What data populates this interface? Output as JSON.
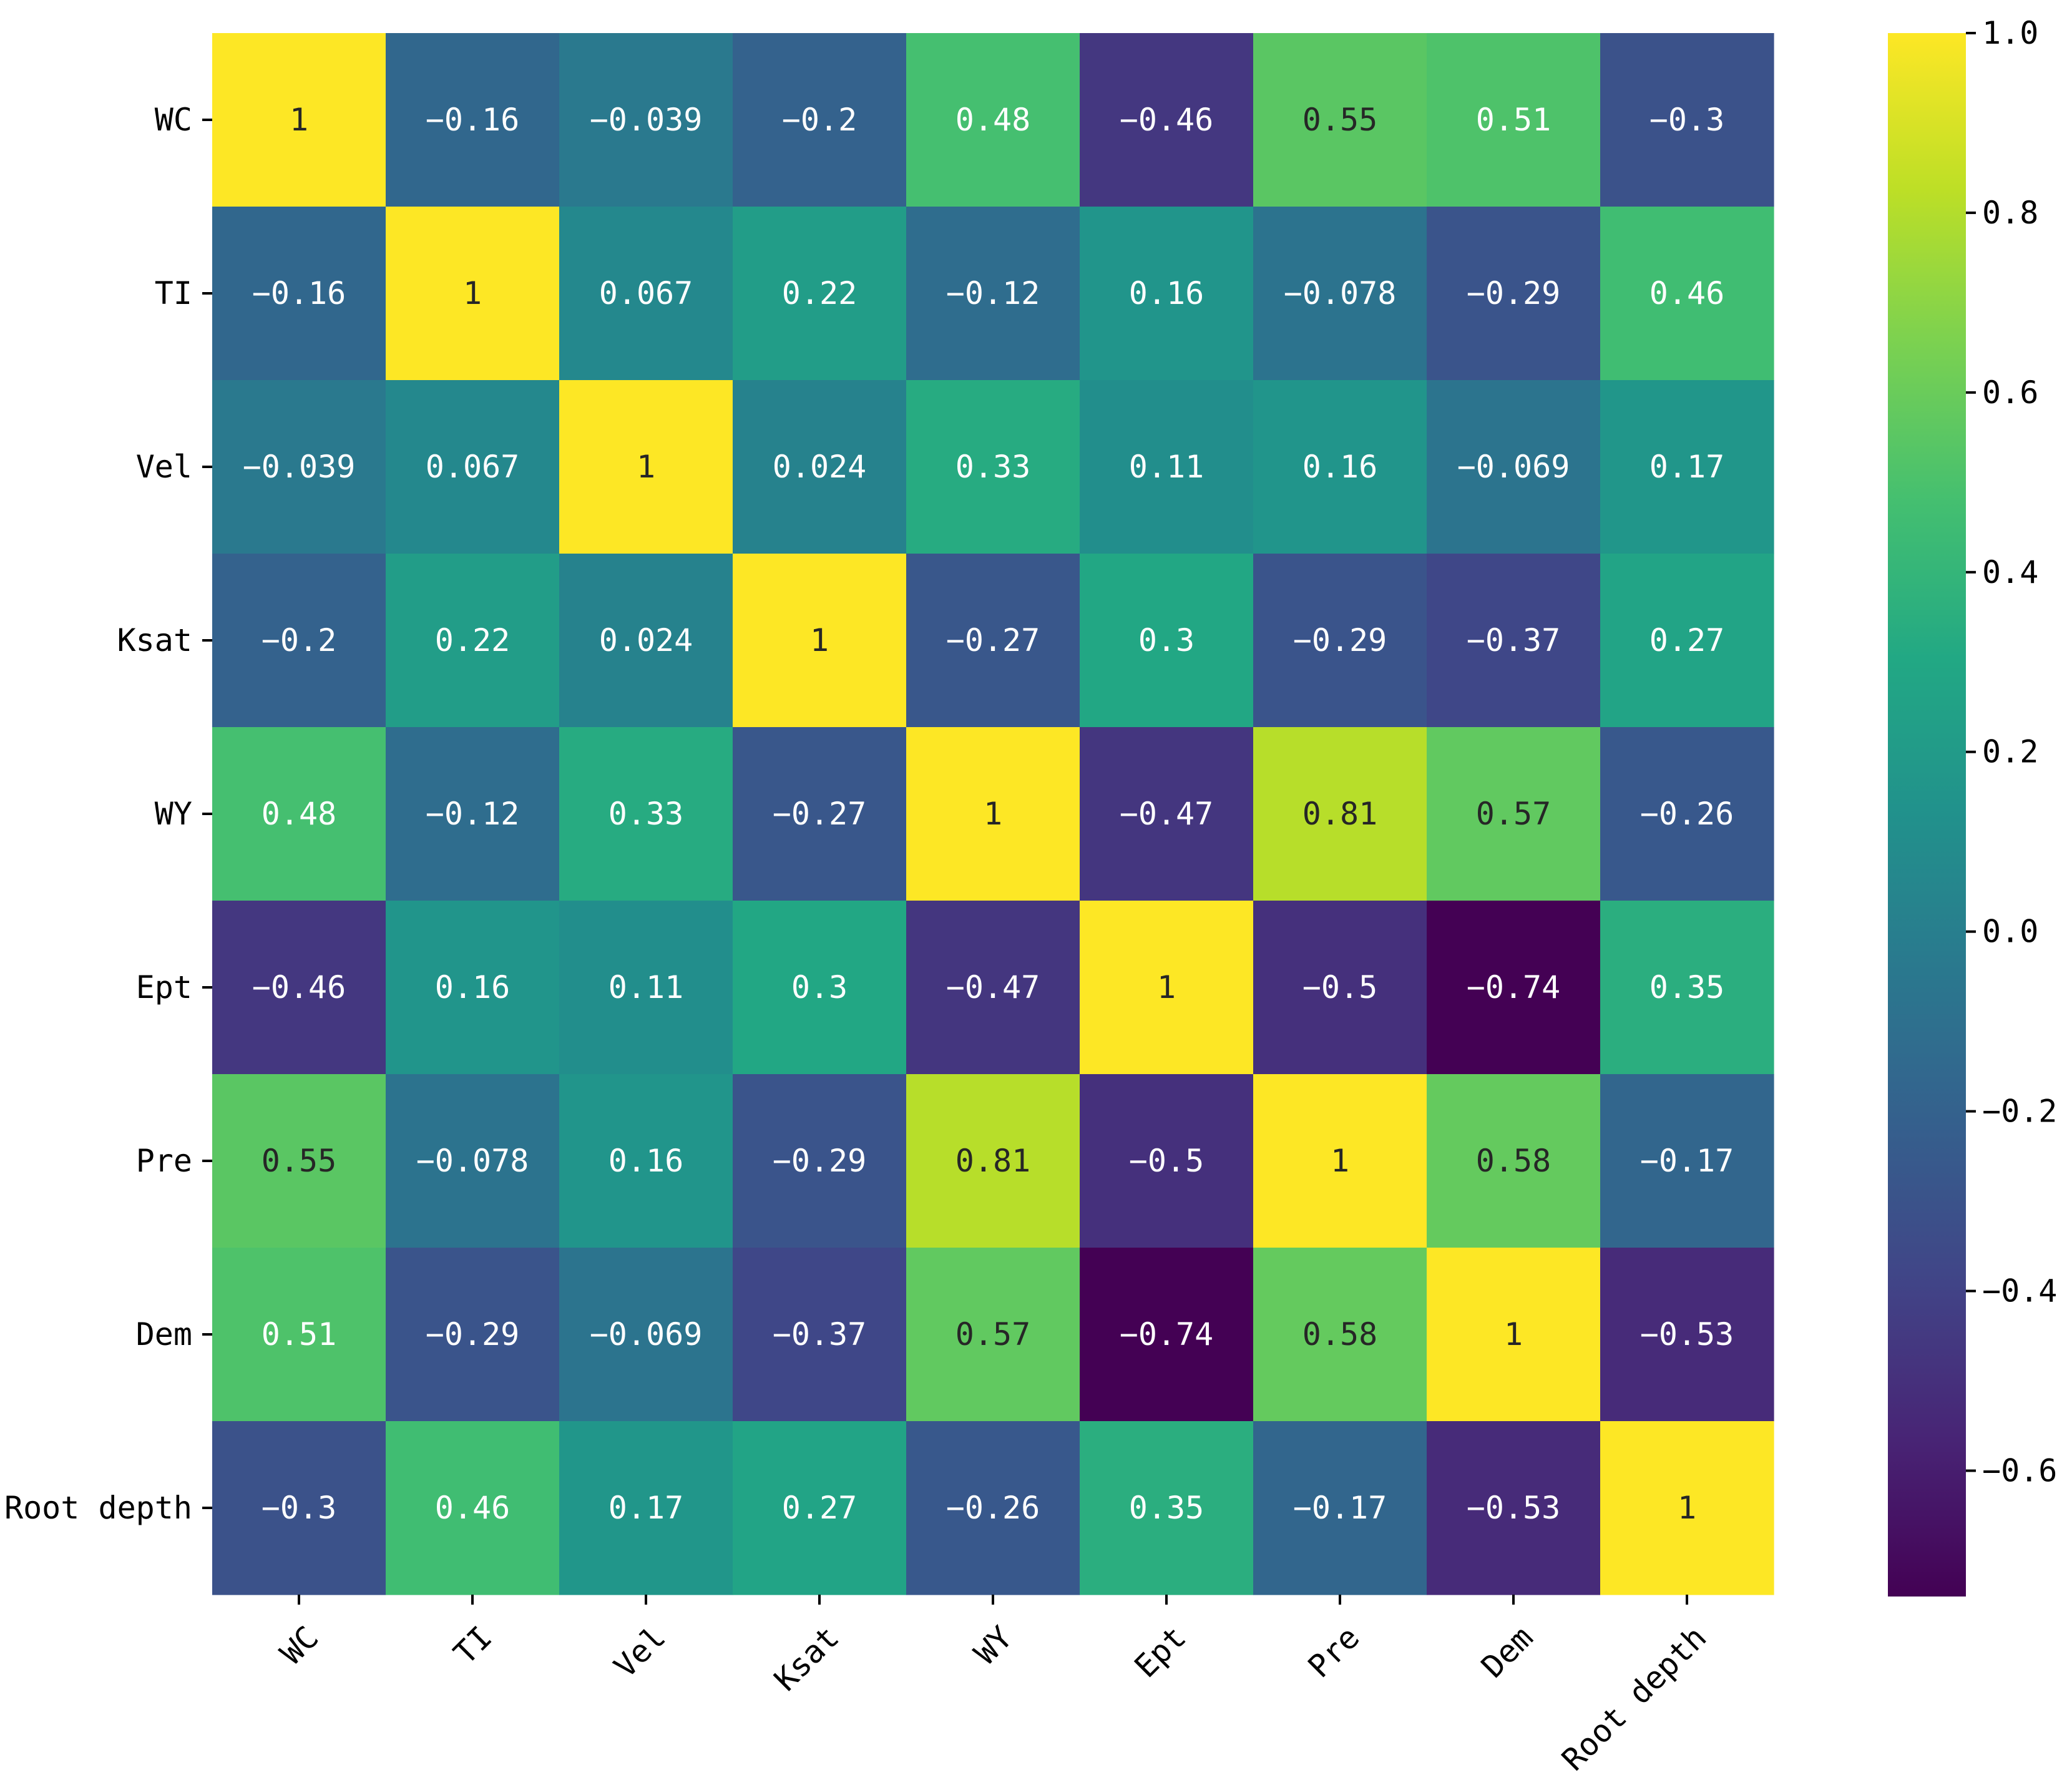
{
  "chart_data": {
    "type": "heatmap",
    "title": "",
    "xlabel": "",
    "ylabel": "",
    "variables": [
      "WC",
      "TI",
      "Vel",
      "Ksat",
      "WY",
      "Ept",
      "Pre",
      "Dem",
      "Root depth"
    ],
    "matrix": [
      [
        1,
        -0.16,
        -0.039,
        -0.2,
        0.48,
        -0.46,
        0.55,
        0.51,
        -0.3
      ],
      [
        -0.16,
        1,
        0.067,
        0.22,
        -0.12,
        0.16,
        -0.078,
        -0.29,
        0.46
      ],
      [
        -0.039,
        0.067,
        1,
        0.024,
        0.33,
        0.11,
        0.16,
        -0.069,
        0.17
      ],
      [
        -0.2,
        0.22,
        0.024,
        1,
        -0.27,
        0.3,
        -0.29,
        -0.37,
        0.27
      ],
      [
        0.48,
        -0.12,
        0.33,
        -0.27,
        1,
        -0.47,
        0.81,
        0.57,
        -0.26
      ],
      [
        -0.46,
        0.16,
        0.11,
        0.3,
        -0.47,
        1,
        -0.5,
        -0.74,
        0.35
      ],
      [
        0.55,
        -0.078,
        0.16,
        -0.29,
        0.81,
        -0.5,
        1,
        0.58,
        -0.17
      ],
      [
        0.51,
        -0.29,
        -0.069,
        -0.37,
        0.57,
        -0.74,
        0.58,
        1,
        -0.53
      ],
      [
        -0.3,
        0.46,
        0.17,
        0.27,
        -0.26,
        0.35,
        -0.17,
        -0.53,
        1
      ]
    ],
    "annotations": [
      [
        "1",
        "−0.16",
        "−0.039",
        "−0.2",
        "0.48",
        "−0.46",
        "0.55",
        "0.51",
        "−0.3"
      ],
      [
        "−0.16",
        "1",
        "0.067",
        "0.22",
        "−0.12",
        "0.16",
        "−0.078",
        "−0.29",
        "0.46"
      ],
      [
        "−0.039",
        "0.067",
        "1",
        "0.024",
        "0.33",
        "0.11",
        "0.16",
        "−0.069",
        "0.17"
      ],
      [
        "−0.2",
        "0.22",
        "0.024",
        "1",
        "−0.27",
        "0.3",
        "−0.29",
        "−0.37",
        "0.27"
      ],
      [
        "0.48",
        "−0.12",
        "0.33",
        "−0.27",
        "1",
        "−0.47",
        "0.81",
        "0.57",
        "−0.26"
      ],
      [
        "−0.46",
        "0.16",
        "0.11",
        "0.3",
        "−0.47",
        "1",
        "−0.5",
        "−0.74",
        "0.35"
      ],
      [
        "0.55",
        "−0.078",
        "0.16",
        "−0.29",
        "0.81",
        "−0.5",
        "1",
        "0.58",
        "−0.17"
      ],
      [
        "0.51",
        "−0.29",
        "−0.069",
        "−0.37",
        "0.57",
        "−0.74",
        "0.58",
        "1",
        "−0.53"
      ],
      [
        "−0.3",
        "0.46",
        "0.17",
        "0.27",
        "−0.26",
        "0.35",
        "−0.17",
        "−0.53",
        "1"
      ]
    ],
    "colormap": "viridis",
    "color_range": [
      -0.74,
      1.0
    ],
    "colorbar_ticks": [
      1.0,
      0.8,
      0.6,
      0.4,
      0.2,
      0.0,
      -0.2,
      -0.4,
      -0.6
    ],
    "colorbar_tick_labels": [
      "1.0",
      "0.8",
      "0.6",
      "0.4",
      "0.2",
      "0.0",
      "−0.2",
      "−0.4",
      "−0.6"
    ],
    "colorbar_position": "right",
    "x_tick_rotation_deg": 45,
    "grid": false
  }
}
